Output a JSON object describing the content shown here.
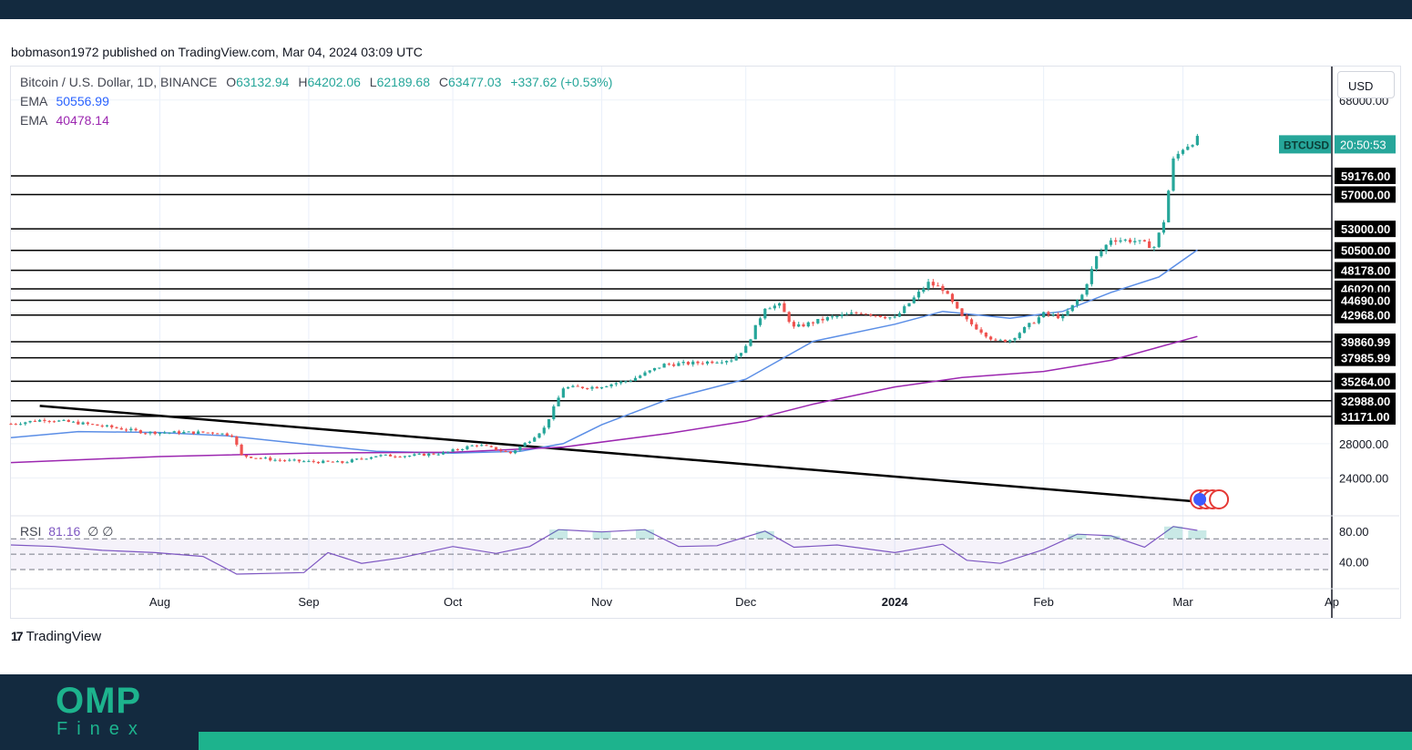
{
  "header": {
    "published": "bobmason1972 published on TradingView.com, Mar 04, 2024 03:09 UTC"
  },
  "legend": {
    "symbol": "Bitcoin / U.S. Dollar, 1D, BINANCE",
    "o_label": "O",
    "o_value": "63132.94",
    "h_label": "H",
    "h_value": "64202.06",
    "l_label": "L",
    "l_value": "62189.68",
    "c_label": "C",
    "c_value": "63477.03",
    "change": "+337.62 (+0.53%)",
    "ema1_label": "EMA",
    "ema1_value": "50556.99",
    "ema2_label": "EMA",
    "ema2_value": "40478.14",
    "rsi_label": "RSI",
    "rsi_value": "81.16",
    "rsi_extra": "∅ ∅"
  },
  "currency": "USD",
  "brand": {
    "tv_logo": "17",
    "tv_name": "TradingView",
    "omp": "OMP",
    "omp_sub": "Finex"
  },
  "colors": {
    "up": "#26a69a",
    "down": "#ef5350",
    "ema_fast": "#5b8ee6",
    "ema_slow": "#9c27b0",
    "rsi": "#7e57c2",
    "level_line": "#000000",
    "footer": "#132a3f",
    "accent": "#1db38d"
  },
  "chart_data": {
    "type": "line",
    "title": "Bitcoin / U.S. Dollar, 1D, BINANCE",
    "yaxis_ticks": [
      "68000.00",
      "28000.00",
      "24000.00"
    ],
    "ylim": [
      19600,
      71900
    ],
    "rsi_ticks": [
      "80.00",
      "40.00"
    ],
    "rsi_ylim": [
      5,
      100
    ],
    "rsi_bands": [
      70,
      50,
      30
    ],
    "x_ticks": [
      "Aug",
      "Sep",
      "Oct",
      "Nov",
      "Dec",
      "2024",
      "Feb",
      "Mar",
      "Ap"
    ],
    "x_tick_dates": [
      "2023-08-01",
      "2023-09-01",
      "2023-10-01",
      "2023-11-01",
      "2023-12-01",
      "2024-01-01",
      "2024-02-01",
      "2024-03-01",
      "2024-04-01"
    ],
    "xlim": [
      "2023-07-01",
      "2024-04-01"
    ],
    "horizontal_levels": [
      59176.0,
      57000.0,
      53000.0,
      50500.0,
      48178.0,
      46020.0,
      44690.0,
      42968.0,
      39860.99,
      37985.99,
      35264.0,
      32988.0,
      31171.0
    ],
    "trendline": {
      "start": {
        "date": "2023-07-07",
        "value": 32400
      },
      "end": {
        "date": "2024-03-03",
        "value": 21300
      }
    },
    "last_price_label": {
      "symbol": "BTCUSD",
      "countdown": "20:50:53",
      "value": 63477.03
    },
    "price": {
      "x": [
        "2023-07-01",
        "2023-07-08",
        "2023-07-15",
        "2023-07-22",
        "2023-07-29",
        "2023-08-05",
        "2023-08-12",
        "2023-08-16",
        "2023-08-18",
        "2023-08-25",
        "2023-09-01",
        "2023-09-08",
        "2023-09-15",
        "2023-09-22",
        "2023-09-29",
        "2023-10-06",
        "2023-10-13",
        "2023-10-17",
        "2023-10-20",
        "2023-10-24",
        "2023-10-31",
        "2023-11-07",
        "2023-11-14",
        "2023-11-21",
        "2023-11-28",
        "2023-12-01",
        "2023-12-05",
        "2023-12-08",
        "2023-12-11",
        "2023-12-18",
        "2023-12-25",
        "2024-01-01",
        "2024-01-08",
        "2024-01-11",
        "2024-01-15",
        "2024-01-22",
        "2024-01-25",
        "2024-02-01",
        "2024-02-05",
        "2024-02-09",
        "2024-02-12",
        "2024-02-15",
        "2024-02-20",
        "2024-02-24",
        "2024-02-26",
        "2024-02-28",
        "2024-03-01",
        "2024-03-04"
      ],
      "values": [
        30300,
        30800,
        30400,
        29900,
        29300,
        29300,
        29300,
        29000,
        26600,
        26100,
        25900,
        25800,
        26600,
        26600,
        26900,
        27900,
        26900,
        28400,
        29800,
        34500,
        34600,
        35400,
        37200,
        37400,
        37800,
        39200,
        43900,
        44100,
        41500,
        42600,
        43300,
        42600,
        46700,
        46000,
        42700,
        39900,
        40100,
        43100,
        42700,
        45300,
        49700,
        51800,
        51600,
        50900,
        53900,
        61000,
        62400,
        63477
      ]
    },
    "series": [
      {
        "name": "EMA",
        "last_value": 50556.99,
        "x": [
          "2023-07-01",
          "2023-07-15",
          "2023-08-01",
          "2023-08-15",
          "2023-09-01",
          "2023-09-15",
          "2023-10-01",
          "2023-10-15",
          "2023-10-24",
          "2023-11-01",
          "2023-11-15",
          "2023-12-01",
          "2023-12-15",
          "2024-01-01",
          "2024-01-11",
          "2024-01-25",
          "2024-02-05",
          "2024-02-15",
          "2024-02-25",
          "2024-03-04"
        ],
        "values": [
          28700,
          29400,
          29300,
          28900,
          27900,
          27100,
          26900,
          27100,
          28000,
          30200,
          33200,
          35500,
          39900,
          41900,
          43400,
          42600,
          43400,
          45600,
          47400,
          50557
        ]
      },
      {
        "name": "EMA",
        "last_value": 40478.14,
        "x": [
          "2023-07-01",
          "2023-08-01",
          "2023-09-01",
          "2023-10-01",
          "2023-10-24",
          "2023-11-15",
          "2023-12-01",
          "2023-12-15",
          "2024-01-01",
          "2024-01-15",
          "2024-02-01",
          "2024-02-15",
          "2024-03-04"
        ],
        "values": [
          25800,
          26500,
          26900,
          27000,
          27600,
          29200,
          30600,
          32600,
          34600,
          35700,
          36400,
          37700,
          40478
        ]
      }
    ],
    "rsi": {
      "last_value": 81.16,
      "x": [
        "2023-07-01",
        "2023-07-10",
        "2023-07-20",
        "2023-07-31",
        "2023-08-10",
        "2023-08-17",
        "2023-08-31",
        "2023-09-05",
        "2023-09-12",
        "2023-09-20",
        "2023-10-01",
        "2023-10-10",
        "2023-10-17",
        "2023-10-23",
        "2023-11-01",
        "2023-11-10",
        "2023-11-17",
        "2023-11-25",
        "2023-12-05",
        "2023-12-11",
        "2023-12-20",
        "2024-01-01",
        "2024-01-11",
        "2024-01-16",
        "2024-01-23",
        "2024-02-01",
        "2024-02-08",
        "2024-02-15",
        "2024-02-22",
        "2024-02-28",
        "2024-03-04"
      ],
      "values": [
        62,
        60,
        55,
        52,
        47,
        24,
        26,
        52,
        38,
        45,
        60,
        51,
        60,
        82,
        79,
        82,
        60,
        61,
        80,
        59,
        62,
        52,
        63,
        42,
        38,
        56,
        76,
        74,
        59,
        86,
        81
      ]
    }
  }
}
